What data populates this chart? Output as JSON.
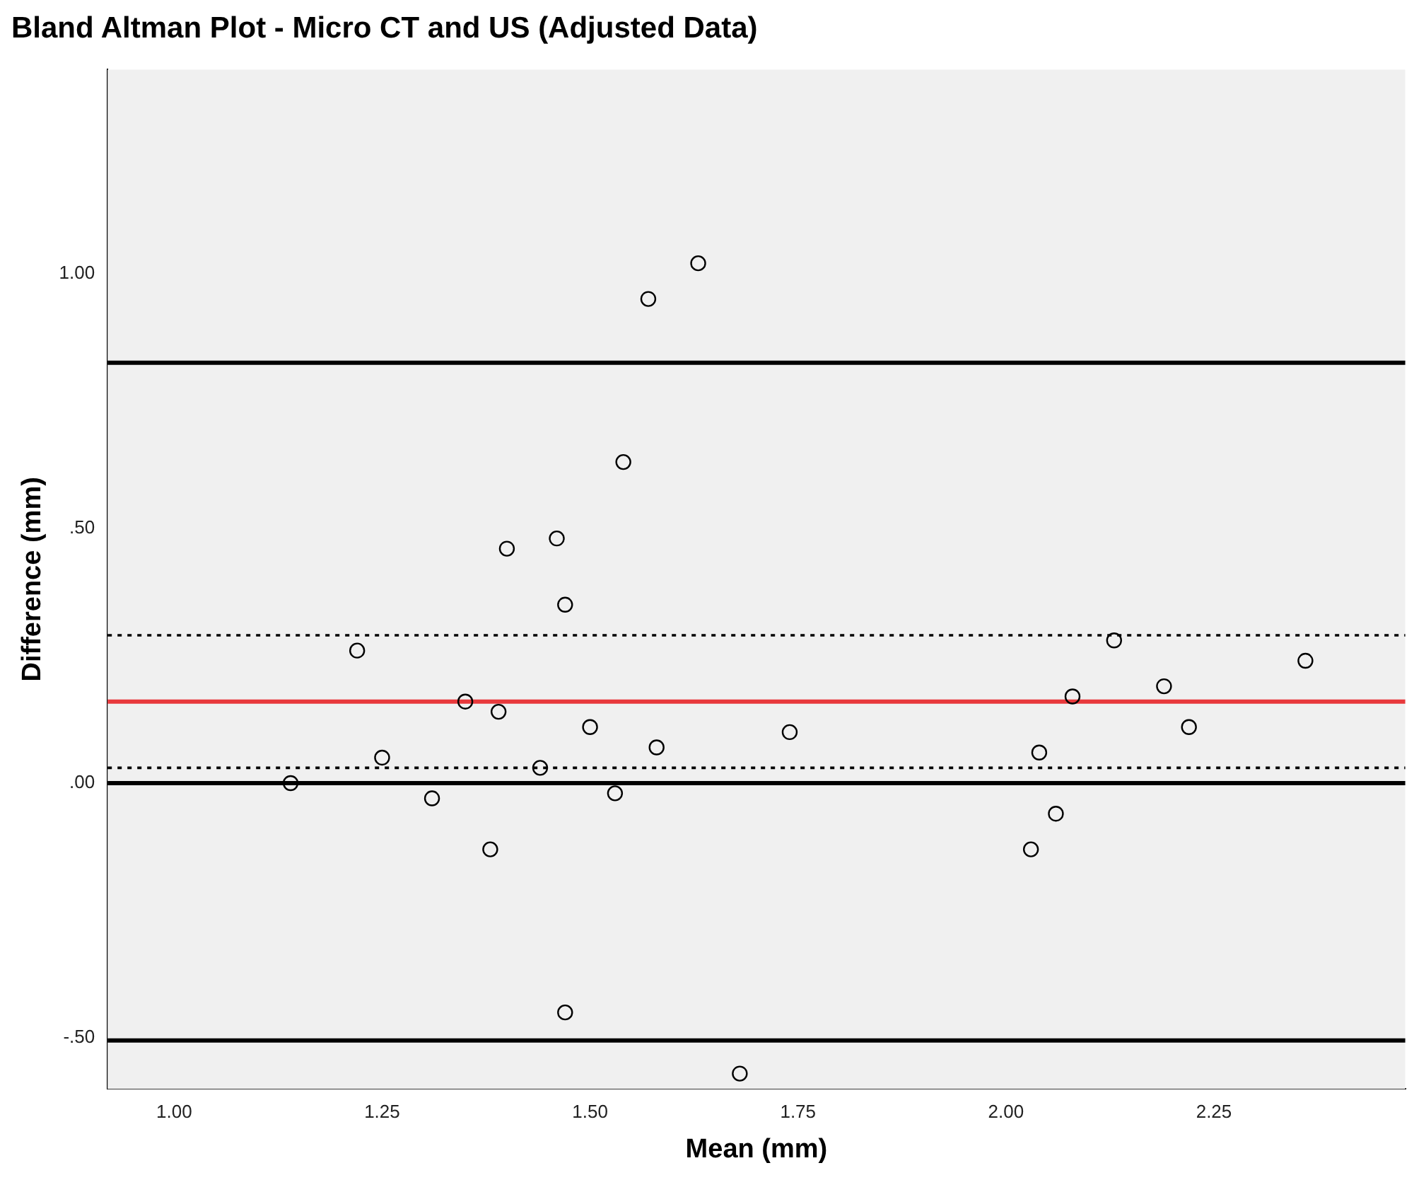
{
  "chart_data": {
    "type": "scatter",
    "title": "Bland Altman Plot - Micro CT and US (Adjusted Data)",
    "xlabel": "Mean (mm)",
    "ylabel": "Difference (mm)",
    "x": [
      1.14,
      1.22,
      1.25,
      1.31,
      1.35,
      1.38,
      1.39,
      1.4,
      1.44,
      1.47,
      1.46,
      1.47,
      1.5,
      1.53,
      1.54,
      1.57,
      1.58,
      1.63,
      1.68,
      1.74,
      2.03,
      2.04,
      2.06,
      2.08,
      2.13,
      2.19,
      2.22,
      2.36
    ],
    "series": [
      {
        "color": "#000000",
        "values": [
          0.0,
          0.26,
          0.05,
          -0.03,
          0.16,
          -0.13,
          0.14,
          0.46,
          0.03,
          -0.45,
          0.48,
          0.35,
          0.11,
          -0.02,
          0.63,
          0.95,
          0.07,
          1.02,
          -0.57,
          0.1,
          -0.13,
          0.06,
          -0.06,
          0.17,
          0.28,
          0.19,
          0.11,
          0.24
        ]
      }
    ],
    "marker": "circle",
    "grid": false,
    "legend": false,
    "xlim": [
      0.92,
      2.48
    ],
    "ylim": [
      -0.6,
      1.4
    ],
    "xticks": [
      {
        "value": 1,
        "label": "1.00"
      },
      {
        "value": 1.25,
        "label": "1.25"
      },
      {
        "value": 1.5,
        "label": "1.50"
      },
      {
        "value": 1.75,
        "label": "1.75"
      },
      {
        "value": 2,
        "label": "2.00"
      },
      {
        "value": 2.25,
        "label": "2.25"
      }
    ],
    "yticks": [
      {
        "value": -0.5,
        "label": "-.50"
      },
      {
        "value": 0,
        "label": ".00"
      },
      {
        "value": 0.5,
        "label": ".50"
      },
      {
        "value": 1,
        "label": "1.00"
      }
    ],
    "ref_lines": [
      {
        "axis": "y",
        "value": 0.825,
        "color": "#000000",
        "line_style": "solid"
      },
      {
        "axis": "y",
        "value": 0.29,
        "color": "#000000",
        "line_style": "dotted"
      },
      {
        "axis": "y",
        "value": 0.16,
        "color": "#e8393c",
        "line_style": "solid"
      },
      {
        "axis": "y",
        "value": 0.03,
        "color": "#000000",
        "line_style": "dotted"
      },
      {
        "axis": "y",
        "value": 0,
        "color": "#000000",
        "line_style": "solid"
      },
      {
        "axis": "y",
        "value": -0.505,
        "color": "#000000",
        "line_style": "solid"
      }
    ]
  }
}
